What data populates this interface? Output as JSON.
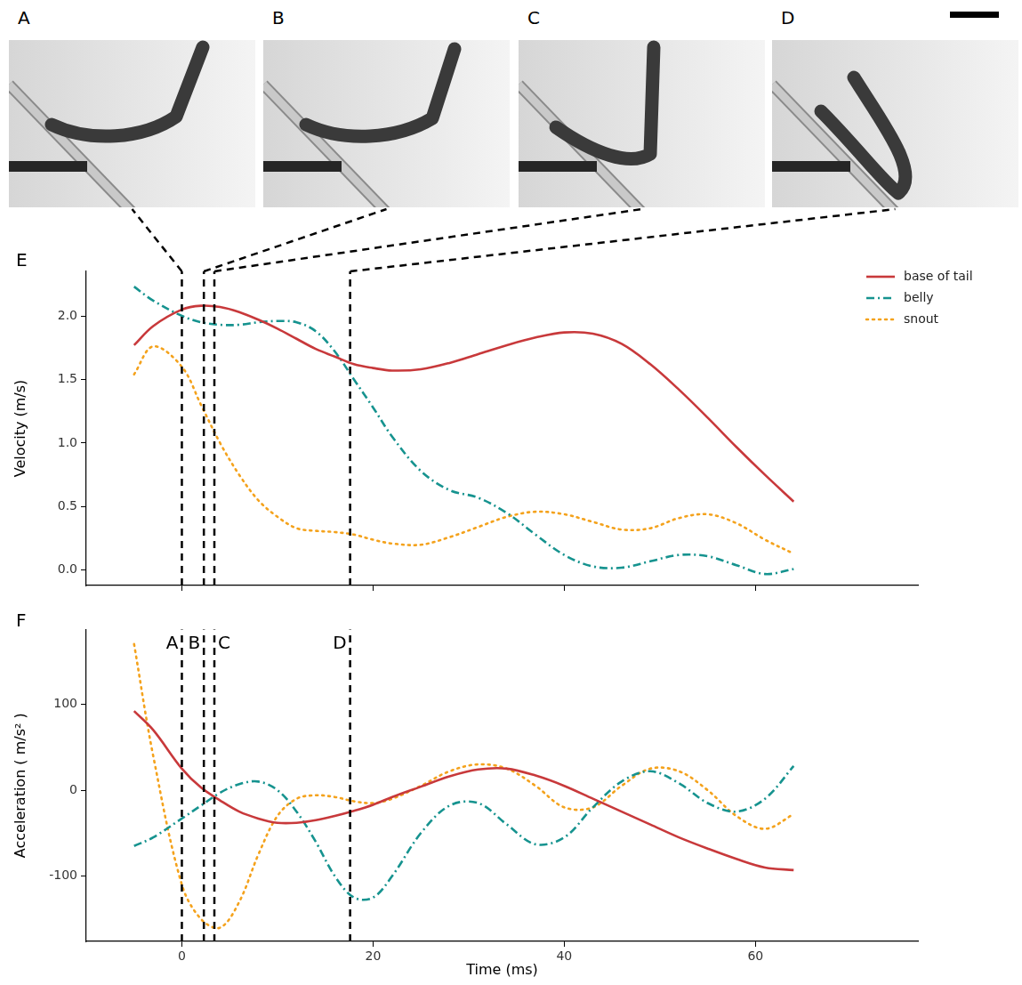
{
  "photo_panels": [
    "A",
    "B",
    "C",
    "D"
  ],
  "chart_data": [
    {
      "type": "line",
      "panel": "E",
      "y_label": "Velocity (m/s)",
      "x": [
        -5,
        -3,
        0,
        2,
        4,
        6,
        8,
        10,
        12,
        14,
        16,
        18,
        20,
        22,
        25,
        28,
        31,
        34,
        37,
        40,
        43,
        46,
        49,
        52,
        55,
        58,
        61,
        64
      ],
      "series": [
        {
          "name": "base of tail",
          "color": "#c8393b",
          "line_style": "solid",
          "values": [
            1.77,
            1.92,
            2.05,
            2.08,
            2.07,
            2.03,
            1.97,
            1.9,
            1.82,
            1.74,
            1.68,
            1.62,
            1.59,
            1.57,
            1.58,
            1.63,
            1.7,
            1.77,
            1.83,
            1.87,
            1.86,
            1.78,
            1.62,
            1.42,
            1.2,
            0.97,
            0.75,
            0.54
          ]
        },
        {
          "name": "belly",
          "color": "#16938f",
          "line_style": "dashdot",
          "values": [
            2.23,
            2.12,
            2.0,
            1.95,
            1.93,
            1.93,
            1.95,
            1.96,
            1.95,
            1.88,
            1.72,
            1.5,
            1.28,
            1.05,
            0.78,
            0.63,
            0.57,
            0.45,
            0.28,
            0.12,
            0.03,
            0.02,
            0.07,
            0.12,
            0.11,
            0.04,
            -0.03,
            0.01
          ]
        },
        {
          "name": "snout",
          "color": "#f4a21c",
          "line_style": "dotted",
          "values": [
            1.54,
            1.76,
            1.6,
            1.3,
            1.0,
            0.75,
            0.55,
            0.42,
            0.33,
            0.31,
            0.3,
            0.28,
            0.24,
            0.21,
            0.2,
            0.26,
            0.34,
            0.42,
            0.46,
            0.44,
            0.38,
            0.32,
            0.33,
            0.41,
            0.44,
            0.37,
            0.24,
            0.13
          ]
        }
      ],
      "xlim": [
        -10,
        77
      ],
      "xticks": [
        0,
        20,
        40,
        60
      ],
      "ylim": [
        -0.12,
        2.35
      ],
      "yticks": [
        {
          "value": 0,
          "label": "0.0"
        },
        0.5,
        {
          "value": 1,
          "label": "1.0"
        },
        1.5,
        {
          "value": 2,
          "label": "2.0"
        }
      ],
      "grid": false,
      "legend": "top right",
      "tick_labels": "y",
      "vlines": [
        0,
        2.3,
        3.4,
        17.6
      ]
    },
    {
      "type": "line",
      "panel": "F",
      "x_label": "Time (ms)",
      "y_label": "Acceleration ( m/s² )",
      "x": [
        -5,
        -3,
        0,
        2,
        4,
        6,
        8,
        10,
        12,
        14,
        16,
        18,
        20,
        22,
        25,
        28,
        31,
        34,
        37,
        40,
        43,
        46,
        49,
        52,
        55,
        58,
        61,
        64
      ],
      "series": [
        {
          "color": "#c8393b",
          "line_style": "solid",
          "values": [
            92,
            70,
            25,
            3,
            -12,
            -25,
            -33,
            -38,
            -38,
            -35,
            -30,
            -24,
            -17,
            -8,
            4,
            16,
            24,
            25,
            17,
            5,
            -10,
            -25,
            -40,
            -55,
            -68,
            -80,
            -90,
            -93
          ]
        },
        {
          "color": "#16938f",
          "line_style": "dashdot",
          "values": [
            -65,
            -55,
            -33,
            -18,
            -3,
            7,
            10,
            0,
            -25,
            -60,
            -100,
            -125,
            -125,
            -100,
            -50,
            -18,
            -15,
            -40,
            -63,
            -55,
            -20,
            10,
            22,
            8,
            -15,
            -25,
            -10,
            28
          ]
        },
        {
          "color": "#f4a21c",
          "line_style": "dotted",
          "values": [
            170,
            40,
            -110,
            -150,
            -160,
            -130,
            -75,
            -30,
            -10,
            -6,
            -8,
            -13,
            -15,
            -10,
            5,
            22,
            30,
            25,
            5,
            -20,
            -20,
            5,
            25,
            22,
            0,
            -30,
            -45,
            -28
          ]
        }
      ],
      "xlim": [
        -10,
        77
      ],
      "xticks": [
        0,
        20,
        40,
        60
      ],
      "ylim": [
        -176,
        187
      ],
      "yticks": [
        -100,
        0,
        100
      ],
      "grid": false,
      "vlines": [
        {
          "x": 0,
          "label": "A"
        },
        {
          "x": 2.3,
          "label": "B"
        },
        {
          "x": 3.4,
          "label": "C"
        },
        {
          "x": 17.6,
          "label": "D"
        }
      ]
    }
  ]
}
